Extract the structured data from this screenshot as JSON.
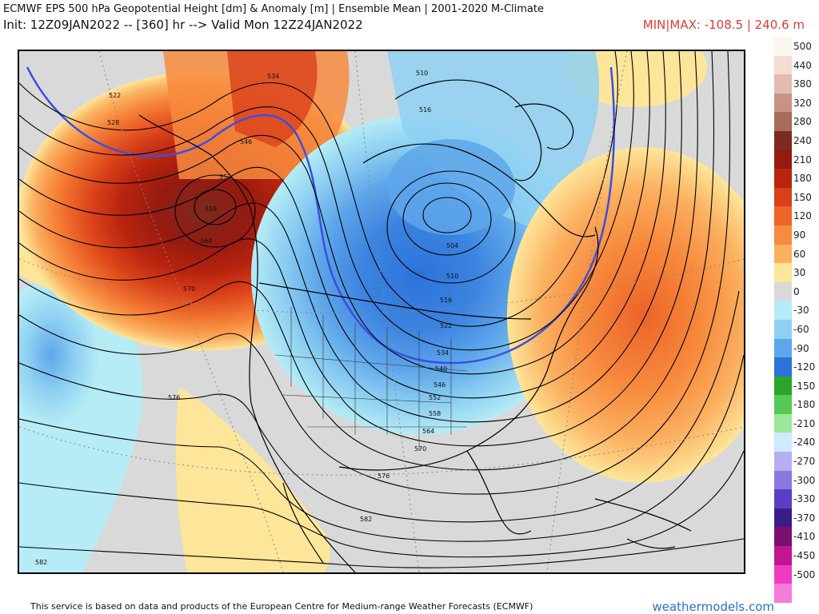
{
  "header": {
    "title": "ECMWF EPS 500 hPa Geopotential Height [dm] & Anomaly [m] | Ensemble Mean | 2001-2020 M-Climate",
    "init_line": "Init: 12Z09JAN2022 -- [360] hr --> Valid Mon 12Z24JAN2022",
    "minmax": "MIN|MAX: -108.5 | 240.6 m"
  },
  "legend": {
    "items": [
      {
        "label": "500",
        "color": "#fdf6f0"
      },
      {
        "label": "440",
        "color": "#f2ddd5"
      },
      {
        "label": "380",
        "color": "#e2bcae"
      },
      {
        "label": "320",
        "color": "#c99383"
      },
      {
        "label": "280",
        "color": "#a86b5c"
      },
      {
        "label": "240",
        "color": "#7c2a1f"
      },
      {
        "label": "210",
        "color": "#951a10"
      },
      {
        "label": "180",
        "color": "#b8240e"
      },
      {
        "label": "150",
        "color": "#d9401a"
      },
      {
        "label": "120",
        "color": "#ec6428"
      },
      {
        "label": "90",
        "color": "#f78b3e"
      },
      {
        "label": "60",
        "color": "#fbb060"
      },
      {
        "label": "30",
        "color": "#fde69a"
      },
      {
        "label": "0",
        "color": "#d9d9d9"
      },
      {
        "label": "-30",
        "color": "#b6ecf5"
      },
      {
        "label": "-60",
        "color": "#8ed0f2"
      },
      {
        "label": "-90",
        "color": "#5ea6ea"
      },
      {
        "label": "-120",
        "color": "#2b73d9"
      },
      {
        "label": "-150",
        "color": "#2aa52a"
      },
      {
        "label": "-180",
        "color": "#56c856"
      },
      {
        "label": "-210",
        "color": "#9be89b"
      },
      {
        "label": "-240",
        "color": "#cfe9ff"
      },
      {
        "label": "-270",
        "color": "#b7b0f0"
      },
      {
        "label": "-300",
        "color": "#8a78e0"
      },
      {
        "label": "-330",
        "color": "#5a3fc4"
      },
      {
        "label": "-370",
        "color": "#3b1d8a"
      },
      {
        "label": "-410",
        "color": "#7a0f6e"
      },
      {
        "label": "-450",
        "color": "#c0168f"
      },
      {
        "label": "-500",
        "color": "#f03cc4"
      },
      {
        "label": "",
        "color": "#f77bd8"
      }
    ]
  },
  "map": {
    "contour_labels": [
      "534",
      "522",
      "528",
      "546",
      "552",
      "558",
      "564",
      "570",
      "576",
      "582",
      "504",
      "510",
      "516",
      "522",
      "534",
      "540",
      "546",
      "552",
      "558",
      "564",
      "570",
      "576",
      "582",
      "510",
      "516"
    ]
  },
  "footer": {
    "credit": "This service is based on data and products of the European Centre for Medium-range Weather Forecasts (ECMWF)",
    "brand": "weathermodels.com"
  }
}
